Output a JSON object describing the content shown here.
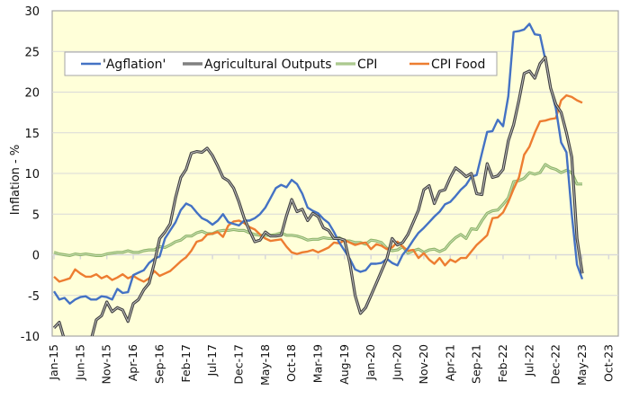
{
  "chart_data": {
    "type": "line",
    "title": "",
    "xlabel": "",
    "ylabel": "Inflation - %",
    "ylim": [
      -10,
      30
    ],
    "yticks": [
      "30",
      "25",
      "20",
      "15",
      "10",
      "5",
      "0",
      "-5",
      "-10"
    ],
    "x_range": [
      "Jan-15",
      "May-23"
    ],
    "x_axis_extent": [
      "Jan-15",
      "Dec-23"
    ],
    "xticks": [
      "Jan-15",
      "Jun-15",
      "Nov-15",
      "Apr-16",
      "Sep-16",
      "Feb-17",
      "Jul-17",
      "Dec-17",
      "May-18",
      "Oct-18",
      "Mar-19",
      "Aug-19",
      "Jan-20",
      "Jun-20",
      "Nov-20",
      "Apr-21",
      "Sep-21",
      "Feb-22",
      "Jul-22",
      "Dec-22",
      "May-23",
      "Oct-23"
    ],
    "grid": "horizontal",
    "legend_placement": "top-left",
    "background": "#FFFFD9",
    "series": [
      {
        "name": "'Agflation'",
        "color": "#4472C4",
        "values": [
          -4.5,
          -5.5,
          -5.3,
          -6.0,
          -5.5,
          -5.2,
          -5.1,
          -5.5,
          -5.5,
          -5.1,
          -5.2,
          -5.5,
          -4.2,
          -4.7,
          -4.6,
          -2.5,
          -2.2,
          -1.9,
          -1.0,
          -0.5,
          -0.2,
          2.0,
          3.0,
          4.0,
          5.5,
          6.3,
          6.0,
          5.2,
          4.5,
          4.2,
          3.7,
          4.2,
          5.0,
          4.0,
          3.8,
          3.6,
          4.2,
          4.2,
          4.5,
          5.0,
          5.8,
          7.0,
          8.2,
          8.6,
          8.3,
          9.2,
          8.7,
          7.5,
          5.8,
          5.4,
          5.1,
          4.4,
          3.9,
          2.8,
          1.5,
          0.5,
          -0.5,
          -1.8,
          -2.1,
          -1.9,
          -1.1,
          -1.1,
          -1.0,
          -0.5,
          -1.0,
          -1.3,
          0.0,
          0.8,
          1.8,
          2.7,
          3.3,
          4.0,
          4.7,
          5.3,
          6.2,
          6.5,
          7.2,
          8.0,
          8.6,
          9.6,
          9.8,
          12.5,
          15.1,
          15.2,
          16.6,
          15.8,
          19.5,
          27.4,
          27.5,
          27.7,
          28.4,
          27.1,
          27.0,
          24.0,
          20.5,
          18.0,
          13.8,
          12.6,
          5.0,
          -1.2,
          -3.0
        ]
      },
      {
        "name": "Agricultural Outputs",
        "color": "#404040",
        "values": [
          -9.0,
          -8.3,
          -10.5,
          -12.0,
          -13.0,
          -13.0,
          -12.0,
          -10.5,
          -8.0,
          -7.5,
          -5.8,
          -7.0,
          -6.5,
          -6.8,
          -8.2,
          -6.0,
          -5.5,
          -4.3,
          -3.5,
          -1.0,
          2.0,
          2.8,
          3.8,
          7.0,
          9.5,
          10.5,
          12.5,
          12.7,
          12.6,
          13.1,
          12.2,
          10.9,
          9.5,
          9.1,
          8.2,
          6.5,
          4.5,
          3.0,
          1.6,
          1.8,
          2.8,
          2.3,
          2.3,
          2.4,
          4.8,
          6.8,
          5.3,
          5.6,
          4.2,
          5.1,
          4.7,
          3.3,
          3.0,
          2.0,
          2.0,
          1.8,
          -1.0,
          -5.0,
          -7.2,
          -6.5,
          -5.0,
          -3.5,
          -2.0,
          -0.5,
          2.0,
          1.2,
          1.5,
          2.5,
          4.0,
          5.5,
          8.0,
          8.5,
          6.3,
          7.8,
          8.0,
          9.5,
          10.7,
          10.2,
          9.6,
          10.0,
          7.5,
          7.4,
          11.2,
          9.5,
          9.7,
          10.5,
          14.0,
          16.0,
          19.0,
          22.3,
          22.6,
          21.7,
          23.5,
          24.3,
          20.5,
          18.5,
          17.5,
          15.0,
          12.0,
          2.0,
          -2.3
        ]
      },
      {
        "name": "CPI",
        "color": "#8FB56A",
        "values": [
          0.3,
          0.1,
          0.0,
          -0.1,
          0.1,
          0.0,
          0.1,
          0.0,
          -0.1,
          -0.1,
          0.1,
          0.2,
          0.3,
          0.3,
          0.5,
          0.3,
          0.3,
          0.5,
          0.6,
          0.6,
          1.0,
          0.9,
          1.2,
          1.6,
          1.8,
          2.3,
          2.3,
          2.7,
          2.9,
          2.6,
          2.6,
          2.9,
          3.0,
          3.0,
          3.1,
          3.0,
          3.0,
          2.7,
          2.5,
          2.4,
          2.4,
          2.4,
          2.5,
          2.7,
          2.4,
          2.4,
          2.3,
          2.1,
          1.8,
          1.9,
          1.9,
          2.1,
          2.0,
          2.0,
          2.1,
          1.7,
          1.7,
          1.5,
          1.5,
          1.3,
          1.8,
          1.7,
          1.5,
          0.8,
          0.5,
          0.6,
          1.0,
          0.2,
          0.5,
          0.7,
          0.3,
          0.6,
          0.7,
          0.4,
          0.7,
          1.5,
          2.1,
          2.5,
          2.0,
          3.2,
          3.1,
          4.2,
          5.1,
          5.4,
          5.5,
          6.2,
          7.0,
          9.0,
          9.1,
          9.4,
          10.1,
          9.9,
          10.1,
          11.1,
          10.7,
          10.5,
          10.1,
          10.4,
          10.1,
          8.7,
          8.7
        ]
      },
      {
        "name": "CPI Food",
        "color": "#ED7D31",
        "values": [
          -2.7,
          -3.3,
          -3.1,
          -2.9,
          -1.8,
          -2.3,
          -2.7,
          -2.7,
          -2.4,
          -2.9,
          -2.6,
          -3.1,
          -2.8,
          -2.4,
          -2.9,
          -2.6,
          -3.0,
          -3.3,
          -2.9,
          -2.0,
          -2.6,
          -2.3,
          -2.0,
          -1.4,
          -0.8,
          -0.3,
          0.5,
          1.6,
          1.8,
          2.5,
          2.6,
          2.8,
          2.2,
          3.6,
          4.1,
          4.2,
          3.9,
          3.4,
          3.1,
          2.5,
          2.0,
          1.7,
          1.8,
          1.9,
          1.0,
          0.3,
          0.1,
          0.3,
          0.4,
          0.6,
          0.3,
          0.6,
          0.9,
          1.5,
          1.4,
          1.8,
          1.5,
          1.2,
          1.4,
          1.5,
          0.7,
          1.3,
          1.1,
          0.7,
          0.9,
          1.6,
          1.0,
          0.5,
          0.6,
          -0.4,
          0.2,
          -0.6,
          -1.1,
          -0.4,
          -1.3,
          -0.6,
          -0.9,
          -0.4,
          -0.4,
          0.4,
          1.2,
          1.8,
          2.4,
          4.5,
          4.6,
          5.2,
          6.5,
          8.1,
          9.5,
          12.3,
          13.3,
          15.0,
          16.4,
          16.5,
          16.7,
          16.8,
          19.0,
          19.6,
          19.4,
          19.0,
          18.7
        ]
      }
    ]
  }
}
